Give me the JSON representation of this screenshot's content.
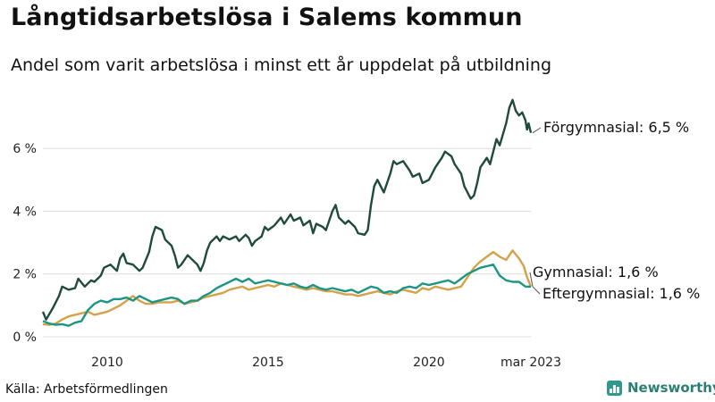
{
  "title": "Långtidsarbetslösa i Salems kommun",
  "subtitle": "Andel som varit arbetslösa i minst ett år uppdelat på utbildning",
  "source": "Källa: Arbetsförmedlingen",
  "brand": "Newsworthy",
  "colors": {
    "forgymnasial": "#1f4a3e",
    "gymnasial": "#1a9683",
    "eftergymnasial": "#d4a24a",
    "grid": "#dcdcdc",
    "brand": "#2f9a8c"
  },
  "chart_data": {
    "type": "line",
    "title": "Långtidsarbetslösa i Salems kommun",
    "subtitle": "Andel som varit arbetslösa i minst ett år uppdelat på utbildning",
    "xlim": [
      2008.0,
      2023.17
    ],
    "ylim": [
      0,
      7.6
    ],
    "x_ticks": [
      {
        "value": 2010,
        "label": "2010"
      },
      {
        "value": 2015,
        "label": "2015"
      },
      {
        "value": 2020,
        "label": "2020"
      },
      {
        "value": 2023.17,
        "label": "mar 2023"
      }
    ],
    "y_ticks": [
      {
        "value": 0,
        "label": "0 %"
      },
      {
        "value": 2,
        "label": "2 %"
      },
      {
        "value": 4,
        "label": "4 %"
      },
      {
        "value": 6,
        "label": "6 %"
      }
    ],
    "grid": true,
    "series": [
      {
        "name": "Förgymnasial",
        "end_label": "Förgymnasial: 6,5 %",
        "color": "#1f4a3e",
        "points": [
          [
            2008.0,
            0.8
          ],
          [
            2008.1,
            0.55
          ],
          [
            2008.3,
            0.9
          ],
          [
            2008.5,
            1.3
          ],
          [
            2008.6,
            1.6
          ],
          [
            2008.8,
            1.5
          ],
          [
            2009.0,
            1.55
          ],
          [
            2009.1,
            1.85
          ],
          [
            2009.3,
            1.6
          ],
          [
            2009.5,
            1.8
          ],
          [
            2009.6,
            1.75
          ],
          [
            2009.8,
            1.95
          ],
          [
            2009.9,
            2.2
          ],
          [
            2010.1,
            2.3
          ],
          [
            2010.3,
            2.1
          ],
          [
            2010.4,
            2.5
          ],
          [
            2010.5,
            2.65
          ],
          [
            2010.6,
            2.35
          ],
          [
            2010.8,
            2.3
          ],
          [
            2011.0,
            2.1
          ],
          [
            2011.1,
            2.2
          ],
          [
            2011.3,
            2.7
          ],
          [
            2011.4,
            3.2
          ],
          [
            2011.5,
            3.5
          ],
          [
            2011.7,
            3.4
          ],
          [
            2011.8,
            3.1
          ],
          [
            2012.0,
            2.9
          ],
          [
            2012.1,
            2.6
          ],
          [
            2012.2,
            2.2
          ],
          [
            2012.3,
            2.3
          ],
          [
            2012.5,
            2.6
          ],
          [
            2012.6,
            2.5
          ],
          [
            2012.8,
            2.3
          ],
          [
            2012.9,
            2.1
          ],
          [
            2013.0,
            2.35
          ],
          [
            2013.1,
            2.75
          ],
          [
            2013.2,
            3.0
          ],
          [
            2013.4,
            3.2
          ],
          [
            2013.5,
            3.05
          ],
          [
            2013.6,
            3.2
          ],
          [
            2013.8,
            3.1
          ],
          [
            2014.0,
            3.2
          ],
          [
            2014.1,
            3.05
          ],
          [
            2014.3,
            3.25
          ],
          [
            2014.4,
            3.15
          ],
          [
            2014.5,
            2.9
          ],
          [
            2014.6,
            3.05
          ],
          [
            2014.8,
            3.2
          ],
          [
            2014.9,
            3.5
          ],
          [
            2015.0,
            3.4
          ],
          [
            2015.2,
            3.55
          ],
          [
            2015.4,
            3.8
          ],
          [
            2015.5,
            3.6
          ],
          [
            2015.7,
            3.9
          ],
          [
            2015.8,
            3.7
          ],
          [
            2016.0,
            3.8
          ],
          [
            2016.1,
            3.55
          ],
          [
            2016.3,
            3.7
          ],
          [
            2016.4,
            3.3
          ],
          [
            2016.5,
            3.6
          ],
          [
            2016.7,
            3.5
          ],
          [
            2016.8,
            3.4
          ],
          [
            2017.0,
            4.0
          ],
          [
            2017.1,
            4.2
          ],
          [
            2017.2,
            3.8
          ],
          [
            2017.4,
            3.6
          ],
          [
            2017.5,
            3.7
          ],
          [
            2017.7,
            3.5
          ],
          [
            2017.8,
            3.3
          ],
          [
            2018.0,
            3.25
          ],
          [
            2018.1,
            3.4
          ],
          [
            2018.2,
            4.2
          ],
          [
            2018.3,
            4.8
          ],
          [
            2018.4,
            5.0
          ],
          [
            2018.6,
            4.6
          ],
          [
            2018.8,
            5.2
          ],
          [
            2018.9,
            5.6
          ],
          [
            2019.0,
            5.5
          ],
          [
            2019.2,
            5.6
          ],
          [
            2019.4,
            5.3
          ],
          [
            2019.5,
            5.1
          ],
          [
            2019.7,
            5.2
          ],
          [
            2019.8,
            4.9
          ],
          [
            2020.0,
            5.0
          ],
          [
            2020.2,
            5.4
          ],
          [
            2020.4,
            5.7
          ],
          [
            2020.5,
            5.9
          ],
          [
            2020.7,
            5.75
          ],
          [
            2020.8,
            5.5
          ],
          [
            2021.0,
            5.2
          ],
          [
            2021.1,
            4.8
          ],
          [
            2021.3,
            4.4
          ],
          [
            2021.4,
            4.5
          ],
          [
            2021.5,
            4.9
          ],
          [
            2021.6,
            5.4
          ],
          [
            2021.8,
            5.7
          ],
          [
            2021.9,
            5.5
          ],
          [
            2022.0,
            5.9
          ],
          [
            2022.1,
            6.3
          ],
          [
            2022.2,
            6.1
          ],
          [
            2022.4,
            6.8
          ],
          [
            2022.5,
            7.3
          ],
          [
            2022.6,
            7.55
          ],
          [
            2022.7,
            7.2
          ],
          [
            2022.8,
            7.05
          ],
          [
            2022.9,
            7.15
          ],
          [
            2023.0,
            6.9
          ],
          [
            2023.05,
            6.6
          ],
          [
            2023.1,
            6.8
          ],
          [
            2023.17,
            6.5
          ]
        ]
      },
      {
        "name": "Gymnasial",
        "end_label": "Gymnasial: 1,6 %",
        "color": "#1a9683",
        "points": [
          [
            2008.0,
            0.5
          ],
          [
            2008.2,
            0.42
          ],
          [
            2008.4,
            0.38
          ],
          [
            2008.6,
            0.4
          ],
          [
            2008.8,
            0.35
          ],
          [
            2009.0,
            0.45
          ],
          [
            2009.2,
            0.5
          ],
          [
            2009.4,
            0.85
          ],
          [
            2009.6,
            1.05
          ],
          [
            2009.8,
            1.15
          ],
          [
            2010.0,
            1.1
          ],
          [
            2010.2,
            1.2
          ],
          [
            2010.4,
            1.2
          ],
          [
            2010.6,
            1.25
          ],
          [
            2010.8,
            1.15
          ],
          [
            2011.0,
            1.3
          ],
          [
            2011.2,
            1.2
          ],
          [
            2011.4,
            1.1
          ],
          [
            2011.6,
            1.15
          ],
          [
            2011.8,
            1.2
          ],
          [
            2012.0,
            1.25
          ],
          [
            2012.2,
            1.2
          ],
          [
            2012.4,
            1.05
          ],
          [
            2012.6,
            1.15
          ],
          [
            2012.8,
            1.15
          ],
          [
            2013.0,
            1.3
          ],
          [
            2013.2,
            1.4
          ],
          [
            2013.4,
            1.55
          ],
          [
            2013.6,
            1.65
          ],
          [
            2013.8,
            1.75
          ],
          [
            2014.0,
            1.85
          ],
          [
            2014.2,
            1.75
          ],
          [
            2014.4,
            1.85
          ],
          [
            2014.6,
            1.7
          ],
          [
            2014.8,
            1.75
          ],
          [
            2015.0,
            1.8
          ],
          [
            2015.2,
            1.75
          ],
          [
            2015.4,
            1.7
          ],
          [
            2015.6,
            1.65
          ],
          [
            2015.8,
            1.7
          ],
          [
            2016.0,
            1.6
          ],
          [
            2016.2,
            1.55
          ],
          [
            2016.4,
            1.65
          ],
          [
            2016.6,
            1.55
          ],
          [
            2016.8,
            1.5
          ],
          [
            2017.0,
            1.55
          ],
          [
            2017.2,
            1.5
          ],
          [
            2017.4,
            1.45
          ],
          [
            2017.6,
            1.5
          ],
          [
            2017.8,
            1.4
          ],
          [
            2018.0,
            1.5
          ],
          [
            2018.2,
            1.6
          ],
          [
            2018.4,
            1.55
          ],
          [
            2018.6,
            1.4
          ],
          [
            2018.8,
            1.45
          ],
          [
            2019.0,
            1.4
          ],
          [
            2019.2,
            1.55
          ],
          [
            2019.4,
            1.6
          ],
          [
            2019.6,
            1.55
          ],
          [
            2019.8,
            1.7
          ],
          [
            2020.0,
            1.65
          ],
          [
            2020.2,
            1.7
          ],
          [
            2020.4,
            1.75
          ],
          [
            2020.6,
            1.8
          ],
          [
            2020.8,
            1.7
          ],
          [
            2021.0,
            1.85
          ],
          [
            2021.2,
            2.0
          ],
          [
            2021.4,
            2.1
          ],
          [
            2021.6,
            2.2
          ],
          [
            2021.8,
            2.25
          ],
          [
            2022.0,
            2.3
          ],
          [
            2022.2,
            1.95
          ],
          [
            2022.4,
            1.8
          ],
          [
            2022.6,
            1.75
          ],
          [
            2022.8,
            1.75
          ],
          [
            2023.0,
            1.6
          ],
          [
            2023.17,
            1.6
          ]
        ]
      },
      {
        "name": "Eftergymnasial",
        "end_label": "Eftergymnasial: 1,6 %",
        "color": "#d4a24a",
        "points": [
          [
            2008.0,
            0.4
          ],
          [
            2008.2,
            0.38
          ],
          [
            2008.4,
            0.42
          ],
          [
            2008.6,
            0.55
          ],
          [
            2008.8,
            0.65
          ],
          [
            2009.0,
            0.7
          ],
          [
            2009.2,
            0.75
          ],
          [
            2009.4,
            0.8
          ],
          [
            2009.6,
            0.7
          ],
          [
            2009.8,
            0.75
          ],
          [
            2010.0,
            0.8
          ],
          [
            2010.2,
            0.9
          ],
          [
            2010.4,
            1.0
          ],
          [
            2010.6,
            1.15
          ],
          [
            2010.8,
            1.3
          ],
          [
            2011.0,
            1.15
          ],
          [
            2011.2,
            1.05
          ],
          [
            2011.4,
            1.05
          ],
          [
            2011.6,
            1.1
          ],
          [
            2011.8,
            1.1
          ],
          [
            2012.0,
            1.1
          ],
          [
            2012.2,
            1.15
          ],
          [
            2012.4,
            1.05
          ],
          [
            2012.6,
            1.1
          ],
          [
            2012.8,
            1.15
          ],
          [
            2013.0,
            1.25
          ],
          [
            2013.2,
            1.3
          ],
          [
            2013.4,
            1.35
          ],
          [
            2013.6,
            1.4
          ],
          [
            2013.8,
            1.5
          ],
          [
            2014.0,
            1.55
          ],
          [
            2014.2,
            1.6
          ],
          [
            2014.4,
            1.5
          ],
          [
            2014.6,
            1.55
          ],
          [
            2014.8,
            1.6
          ],
          [
            2015.0,
            1.65
          ],
          [
            2015.2,
            1.6
          ],
          [
            2015.4,
            1.7
          ],
          [
            2015.6,
            1.65
          ],
          [
            2015.8,
            1.6
          ],
          [
            2016.0,
            1.55
          ],
          [
            2016.2,
            1.5
          ],
          [
            2016.4,
            1.55
          ],
          [
            2016.6,
            1.5
          ],
          [
            2016.8,
            1.45
          ],
          [
            2017.0,
            1.45
          ],
          [
            2017.2,
            1.4
          ],
          [
            2017.4,
            1.35
          ],
          [
            2017.6,
            1.35
          ],
          [
            2017.8,
            1.3
          ],
          [
            2018.0,
            1.35
          ],
          [
            2018.2,
            1.4
          ],
          [
            2018.4,
            1.45
          ],
          [
            2018.6,
            1.4
          ],
          [
            2018.8,
            1.35
          ],
          [
            2019.0,
            1.45
          ],
          [
            2019.2,
            1.5
          ],
          [
            2019.4,
            1.45
          ],
          [
            2019.6,
            1.4
          ],
          [
            2019.8,
            1.55
          ],
          [
            2020.0,
            1.5
          ],
          [
            2020.2,
            1.6
          ],
          [
            2020.4,
            1.55
          ],
          [
            2020.6,
            1.5
          ],
          [
            2020.8,
            1.55
          ],
          [
            2021.0,
            1.6
          ],
          [
            2021.2,
            1.9
          ],
          [
            2021.4,
            2.2
          ],
          [
            2021.6,
            2.4
          ],
          [
            2021.8,
            2.55
          ],
          [
            2022.0,
            2.7
          ],
          [
            2022.2,
            2.55
          ],
          [
            2022.4,
            2.45
          ],
          [
            2022.6,
            2.75
          ],
          [
            2022.8,
            2.5
          ],
          [
            2022.95,
            2.25
          ],
          [
            2023.05,
            1.9
          ],
          [
            2023.17,
            1.6
          ]
        ]
      }
    ]
  }
}
